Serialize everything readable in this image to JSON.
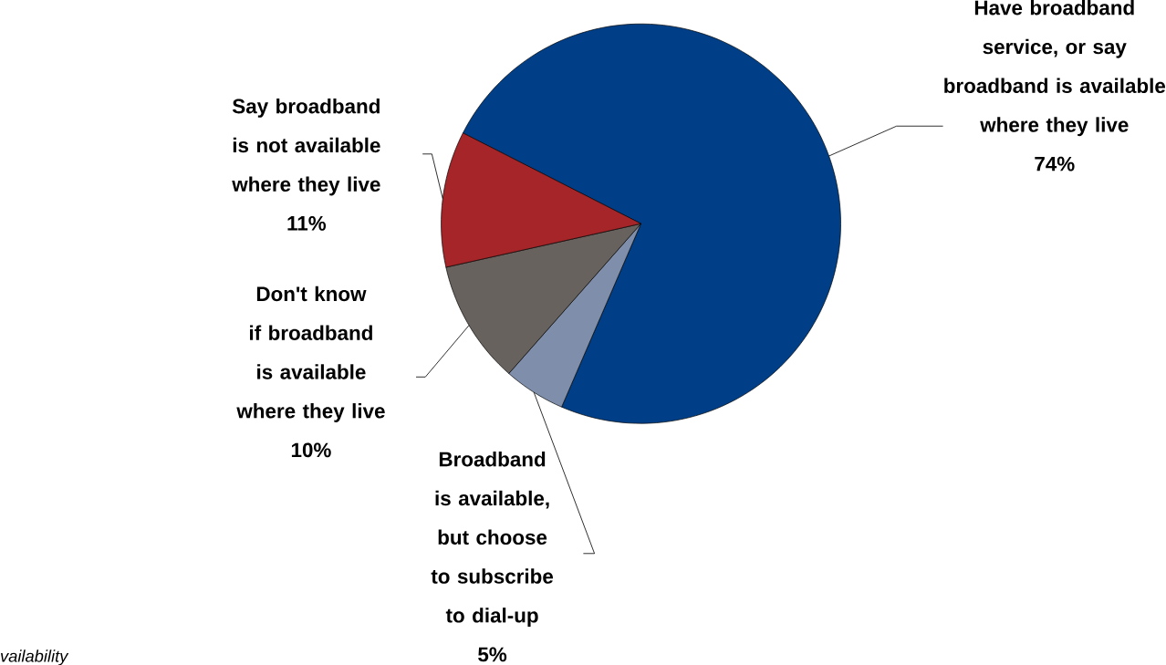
{
  "chart_data": {
    "type": "pie",
    "categories": [
      "Have broadband service, or say broadband is available where they live",
      "Broadband is available, but choose to subscribe to dial-up",
      "Don't know if broadband is available where they live",
      "Say broadband is not available where they live"
    ],
    "values": [
      74,
      5,
      10,
      11
    ],
    "value_labels": [
      "74%",
      "5%",
      "10%",
      "11%"
    ],
    "colors": [
      "#003f87",
      "#7f8fab",
      "#67625d",
      "#a62528"
    ],
    "annotations": [
      "vailability"
    ]
  }
}
